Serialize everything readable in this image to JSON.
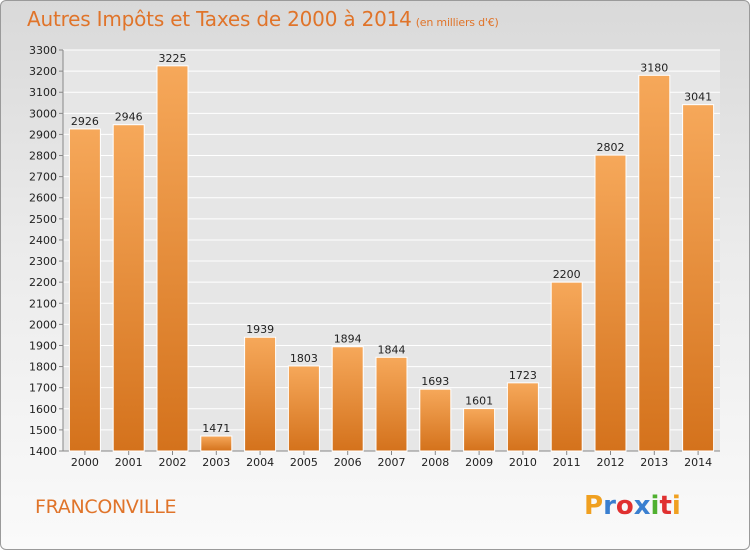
{
  "header": {
    "title": "Autres Impôts et Taxes de 2000 à 2014",
    "subtitle": "(en milliers d'€)"
  },
  "footer": {
    "city": "FRANCONVILLE",
    "logo": {
      "letters": [
        "P",
        "r",
        "o",
        "x",
        "i",
        "t",
        "i"
      ],
      "colors": [
        "#f0a020",
        "#3a7fd0",
        "#e03030",
        "#3a7fd0",
        "#50b030",
        "#e03030",
        "#f0a020"
      ]
    }
  },
  "colors": {
    "accent": "#e0742a",
    "bar_light": "#f6a85a",
    "bar_dark": "#d4721c",
    "grid": "#ffffff",
    "text": "#222222"
  },
  "chart_data": {
    "type": "bar",
    "categories": [
      "2000",
      "2001",
      "2002",
      "2003",
      "2004",
      "2005",
      "2006",
      "2007",
      "2008",
      "2009",
      "2010",
      "2011",
      "2012",
      "2013",
      "2014"
    ],
    "values": [
      2926,
      2946,
      3225,
      1471,
      1939,
      1803,
      1894,
      1844,
      1693,
      1601,
      1723,
      2200,
      2802,
      3180,
      3041
    ],
    "ylim": [
      1400,
      3300
    ],
    "ytick_step": 100,
    "grid": true,
    "data_labels": true
  }
}
